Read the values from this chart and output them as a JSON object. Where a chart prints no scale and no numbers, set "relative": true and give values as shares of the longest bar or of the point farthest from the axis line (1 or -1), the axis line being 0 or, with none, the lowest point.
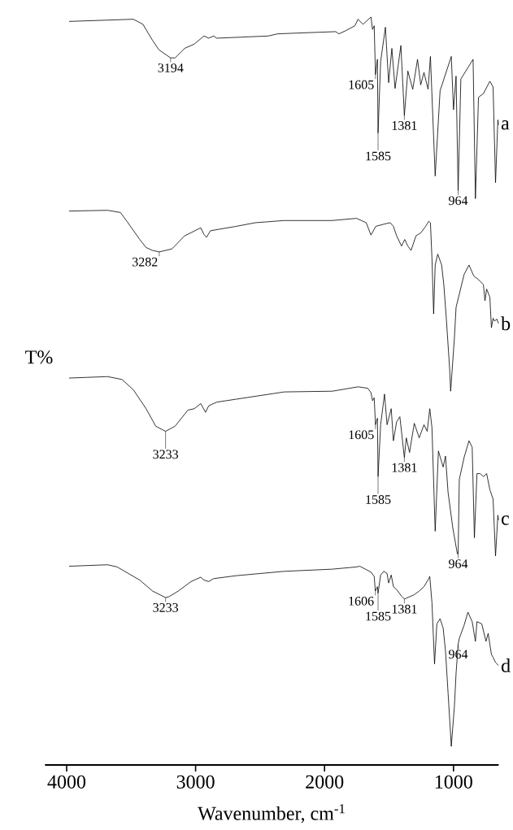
{
  "chart_data": {
    "type": "line",
    "relative": true,
    "xlabel": "Wavenumber, cm$^{-1}$",
    "ylabel": "T%",
    "xlim": [
      4168,
      650
    ],
    "xticks": [
      4000,
      3000,
      2000,
      1000
    ],
    "series": [
      {
        "name": "a",
        "color": "#000000",
        "x": [
          3981,
          3483,
          3408,
          3334,
          3284,
          3194,
          3159,
          3085,
          3010,
          2935,
          2898,
          2860,
          2836,
          2437,
          2362,
          1914,
          1889,
          1839,
          1765,
          1740,
          1702,
          1640,
          1628,
          1615,
          1605,
          1590,
          1585,
          1565,
          1528,
          1503,
          1478,
          1453,
          1428,
          1408,
          1381,
          1354,
          1316,
          1279,
          1254,
          1229,
          1197,
          1179,
          1142,
          1104,
          1017,
          1000,
          980,
          964,
          943,
          848,
          830,
          806,
          768,
          718,
          693,
          674,
          656,
          651
        ],
        "values": [
          0.994,
          0.997,
          0.99,
          0.968,
          0.955,
          0.944,
          0.944,
          0.957,
          0.963,
          0.974,
          0.971,
          0.974,
          0.971,
          0.974,
          0.977,
          0.98,
          0.977,
          0.981,
          0.988,
          0.997,
          0.99,
          1,
          0.983,
          0.988,
          0.921,
          0.942,
          0.841,
          0.939,
          0.986,
          0.91,
          0.957,
          0.902,
          0.935,
          0.961,
          0.865,
          0.926,
          0.901,
          0.942,
          0.907,
          0.924,
          0.901,
          0.946,
          0.782,
          0.899,
          0.946,
          0.873,
          0.919,
          0.762,
          0.915,
          0.942,
          0.751,
          0.89,
          0.895,
          0.912,
          0.904,
          0.773,
          0.859,
          0.852
        ]
      },
      {
        "name": "b",
        "color": "#000000",
        "x": [
          3981,
          3682,
          3583,
          3533,
          3433,
          3384,
          3334,
          3282,
          3184,
          3085,
          2960,
          2935,
          2915,
          2885,
          2686,
          2537,
          2312,
          1939,
          1752,
          1677,
          1640,
          1603,
          1540,
          1491,
          1466,
          1441,
          1403,
          1378,
          1354,
          1329,
          1291,
          1254,
          1216,
          1192,
          1179,
          1167,
          1154,
          1142,
          1122,
          1092,
          1075,
          1055,
          1030,
          1022,
          993,
          980,
          955,
          918,
          880,
          843,
          806,
          768,
          756,
          743,
          718,
          706,
          693,
          681,
          664,
          651
        ],
        "values": [
          0.734,
          0.735,
          0.732,
          0.72,
          0.695,
          0.684,
          0.68,
          0.678,
          0.682,
          0.7,
          0.711,
          0.702,
          0.698,
          0.707,
          0.713,
          0.718,
          0.721,
          0.721,
          0.724,
          0.718,
          0.701,
          0.713,
          0.716,
          0.718,
          0.713,
          0.7,
          0.686,
          0.695,
          0.686,
          0.68,
          0.7,
          0.704,
          0.713,
          0.72,
          0.718,
          0.669,
          0.593,
          0.66,
          0.675,
          0.66,
          0.633,
          0.585,
          0.518,
          0.487,
          0.56,
          0.602,
          0.62,
          0.647,
          0.66,
          0.645,
          0.64,
          0.633,
          0.611,
          0.627,
          0.616,
          0.574,
          0.587,
          0.583,
          0.586,
          0.58
        ]
      },
      {
        "name": "c",
        "color": "#000000",
        "x": [
          3981,
          3682,
          3570,
          3483,
          3384,
          3309,
          3233,
          3159,
          3060,
          3010,
          2960,
          2923,
          2898,
          2836,
          2686,
          2312,
          1939,
          1740,
          1665,
          1640,
          1628,
          1615,
          1605,
          1590,
          1585,
          1565,
          1535,
          1515,
          1483,
          1466,
          1441,
          1416,
          1381,
          1366,
          1341,
          1304,
          1266,
          1229,
          1204,
          1184,
          1167,
          1142,
          1117,
          1080,
          1062,
          1042,
          1005,
          970,
          964,
          955,
          918,
          880,
          855,
          838,
          818,
          793,
          768,
          743,
          718,
          693,
          674,
          656,
          651
        ],
        "values": [
          0.505,
          0.507,
          0.503,
          0.489,
          0.463,
          0.439,
          0.432,
          0.439,
          0.461,
          0.463,
          0.47,
          0.458,
          0.467,
          0.472,
          0.476,
          0.486,
          0.487,
          0.493,
          0.491,
          0.485,
          0.474,
          0.478,
          0.441,
          0.45,
          0.37,
          0.441,
          0.483,
          0.441,
          0.463,
          0.419,
          0.445,
          0.452,
          0.396,
          0.423,
          0.403,
          0.443,
          0.423,
          0.441,
          0.432,
          0.463,
          0.437,
          0.295,
          0.405,
          0.383,
          0.398,
          0.348,
          0.299,
          0.264,
          0.264,
          0.366,
          0.396,
          0.419,
          0.41,
          0.286,
          0.374,
          0.374,
          0.37,
          0.374,
          0.352,
          0.339,
          0.261,
          0.317,
          0.31
        ]
      },
      {
        "name": "d",
        "color": "#000000",
        "x": [
          3981,
          3682,
          3608,
          3433,
          3334,
          3233,
          3209,
          3134,
          3035,
          2960,
          2935,
          2898,
          2860,
          2686,
          2312,
          1939,
          1752,
          1727,
          1640,
          1615,
          1606,
          1590,
          1585,
          1565,
          1540,
          1515,
          1503,
          1483,
          1466,
          1441,
          1403,
          1381,
          1304,
          1266,
          1229,
          1192,
          1184,
          1167,
          1147,
          1129,
          1104,
          1080,
          1062,
          1042,
          1017,
          993,
          980,
          964,
          955,
          918,
          888,
          855,
          830,
          818,
          781,
          748,
          731,
          706,
          693,
          674,
          651
        ],
        "values": [
          0.247,
          0.249,
          0.246,
          0.228,
          0.213,
          0.204,
          0.205,
          0.213,
          0.226,
          0.232,
          0.228,
          0.226,
          0.23,
          0.234,
          0.24,
          0.243,
          0.246,
          0.247,
          0.239,
          0.233,
          0.213,
          0.219,
          0.21,
          0.235,
          0.24,
          0.237,
          0.224,
          0.235,
          0.219,
          0.215,
          0.206,
          0.202,
          0.208,
          0.213,
          0.219,
          0.23,
          0.233,
          0.197,
          0.113,
          0.168,
          0.175,
          0.162,
          0.131,
          0.073,
          0.0,
          0.055,
          0.1,
          0.14,
          0.148,
          0.166,
          0.184,
          0.171,
          0.144,
          0.171,
          0.168,
          0.144,
          0.155,
          0.126,
          0.122,
          0.115,
          0.111
        ]
      }
    ],
    "annotations": [
      {
        "text": "3194",
        "x": 3194,
        "y": 0.944
      },
      {
        "text": "1605",
        "x": 1605,
        "y": 0.921
      },
      {
        "text": "1585",
        "x": 1585,
        "y": 0.841
      },
      {
        "text": "1381",
        "x": 1381,
        "y": 0.865
      },
      {
        "text": "964",
        "x": 964,
        "y": 0.762
      },
      {
        "text": "3282",
        "x": 3282,
        "y": 0.678
      },
      {
        "text": "3233",
        "x": 3233,
        "y": 0.432
      },
      {
        "text": "1605",
        "x": 1605,
        "y": 0.441
      },
      {
        "text": "1585",
        "x": 1585,
        "y": 0.37
      },
      {
        "text": "1381",
        "x": 1381,
        "y": 0.396
      },
      {
        "text": "964",
        "x": 964,
        "y": 0.264
      },
      {
        "text": "3233",
        "x": 3233,
        "y": 0.204
      },
      {
        "text": "1606",
        "x": 1606,
        "y": 0.213
      },
      {
        "text": "1585",
        "x": 1585,
        "y": 0.21
      },
      {
        "text": "1381",
        "x": 1381,
        "y": 0.202
      },
      {
        "text": "964",
        "x": 964,
        "y": 0.14
      }
    ]
  }
}
